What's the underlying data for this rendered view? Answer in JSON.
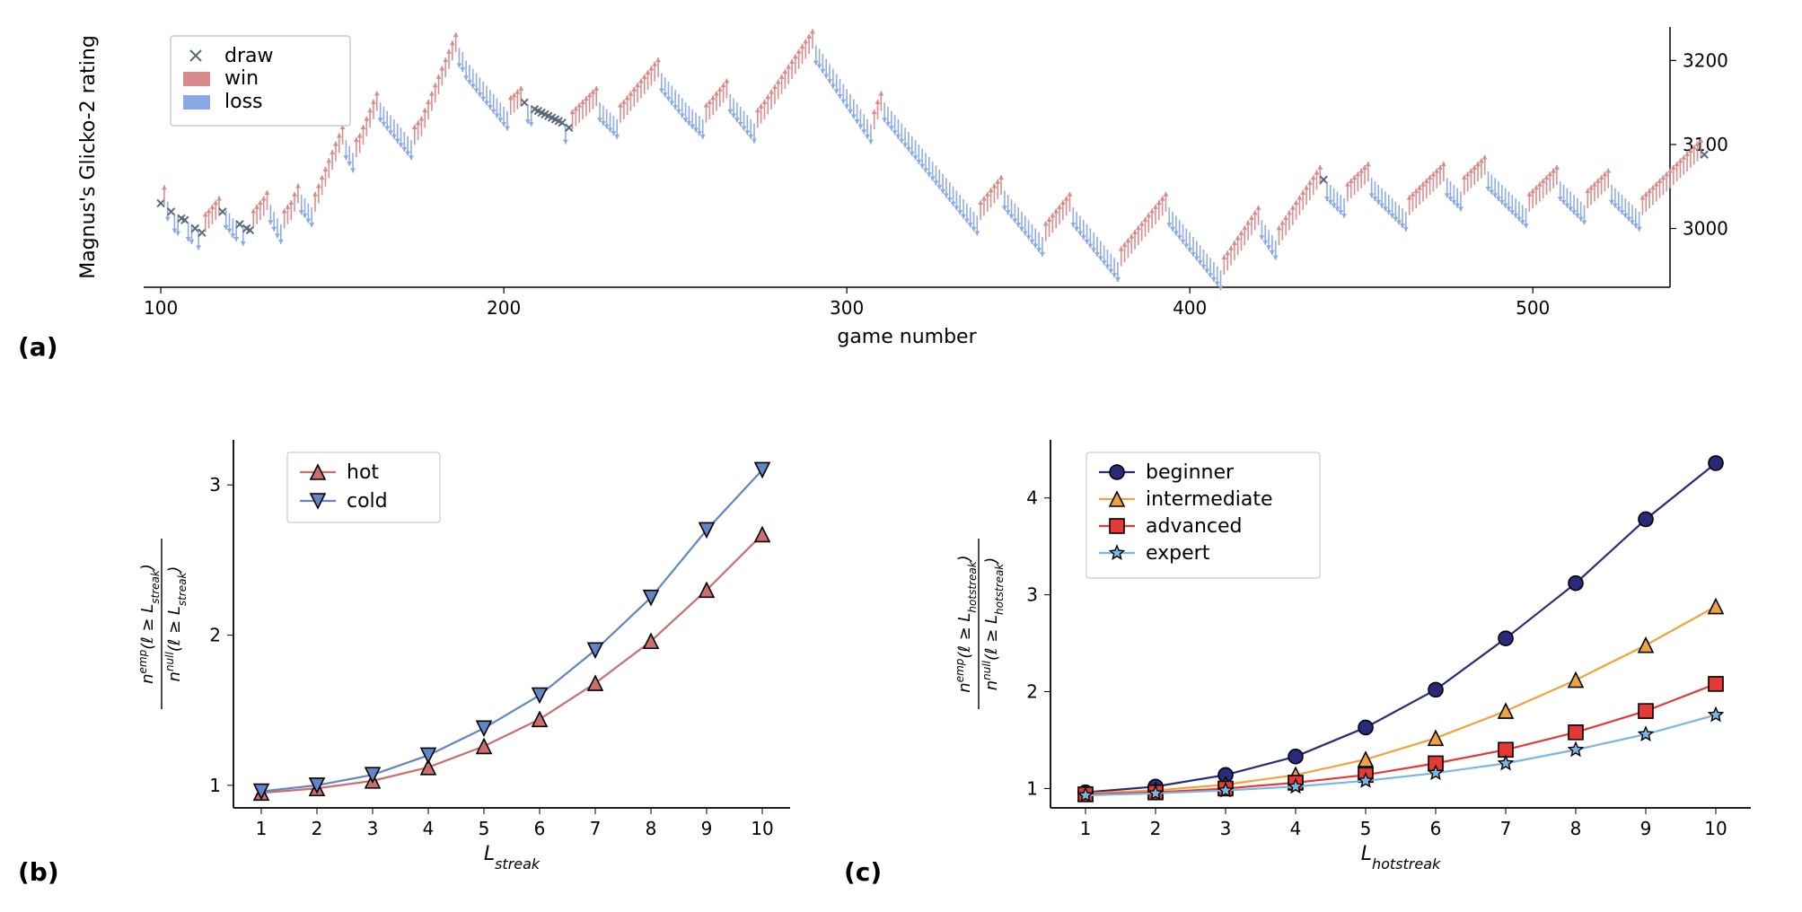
{
  "panel_labels": {
    "a": "(a)",
    "b": "(b)",
    "c": "(c)"
  },
  "colors": {
    "win": "#d88a8a",
    "loss": "#8aa8e6",
    "draw": "#5a6a78",
    "axis": "#000000",
    "grid": "#e6e6e6",
    "frame": "#c0c0c0",
    "text": "#000000",
    "hot": "#cc6e6e",
    "cold": "#6285c7",
    "beginner": "#2a2a7a",
    "intermediate": "#f0a33a",
    "advanced": "#e53935",
    "expert": "#7ab6e6",
    "bg": "#ffffff",
    "outline": "#000000"
  },
  "fonts": {
    "tick": 20,
    "label": 22,
    "legend": 22
  },
  "panel_a": {
    "xlabel": "game number",
    "ylabel": "Magnus's Glicko-2 rating",
    "xlim": [
      95,
      540
    ],
    "ylim": [
      2930,
      3240
    ],
    "xticks": [
      100,
      200,
      300,
      400,
      500
    ],
    "yticks": [
      3000,
      3100,
      3200
    ],
    "legend": {
      "draw": "draw",
      "win": "win",
      "loss": "loss"
    },
    "series": {
      "x_start": 100,
      "n": 440,
      "arrow_amp": 22,
      "ratings": [
        3030,
        3028,
        3032,
        3020,
        3018,
        3015,
        3012,
        3010,
        3008,
        3005,
        3000,
        2998,
        2995,
        2996,
        3000,
        3005,
        3010,
        3015,
        3020,
        3022,
        3018,
        3012,
        3008,
        3005,
        3003,
        3000,
        2998,
        3000,
        3005,
        3010,
        3015,
        3022,
        3028,
        3020,
        3012,
        3005,
        3000,
        3005,
        3010,
        3020,
        3030,
        3040,
        3036,
        3030,
        3025,
        3020,
        3030,
        3040,
        3050,
        3060,
        3070,
        3080,
        3090,
        3100,
        3105,
        3098,
        3090,
        3085,
        3090,
        3100,
        3110,
        3120,
        3130,
        3140,
        3150,
        3145,
        3140,
        3135,
        3130,
        3125,
        3120,
        3115,
        3110,
        3105,
        3100,
        3105,
        3110,
        3120,
        3130,
        3140,
        3150,
        3160,
        3170,
        3180,
        3190,
        3200,
        3210,
        3215,
        3210,
        3200,
        3195,
        3190,
        3185,
        3180,
        3175,
        3170,
        3165,
        3160,
        3155,
        3150,
        3145,
        3140,
        3135,
        3138,
        3142,
        3146,
        3150,
        3148,
        3145,
        3142,
        3140,
        3138,
        3136,
        3134,
        3132,
        3130,
        3128,
        3126,
        3124,
        3120,
        3118,
        3122,
        3126,
        3130,
        3134,
        3138,
        3142,
        3146,
        3150,
        3146,
        3142,
        3138,
        3134,
        3130,
        3126,
        3130,
        3135,
        3140,
        3145,
        3150,
        3155,
        3160,
        3165,
        3170,
        3175,
        3180,
        3185,
        3180,
        3175,
        3170,
        3165,
        3160,
        3155,
        3150,
        3146,
        3142,
        3138,
        3134,
        3130,
        3126,
        3130,
        3135,
        3140,
        3145,
        3150,
        3155,
        3160,
        3155,
        3150,
        3145,
        3140,
        3135,
        3130,
        3125,
        3120,
        3125,
        3130,
        3136,
        3142,
        3148,
        3154,
        3160,
        3166,
        3172,
        3178,
        3184,
        3190,
        3196,
        3202,
        3208,
        3214,
        3218,
        3214,
        3208,
        3202,
        3196,
        3190,
        3184,
        3178,
        3172,
        3166,
        3160,
        3154,
        3148,
        3142,
        3136,
        3130,
        3124,
        3118,
        3130,
        3140,
        3150,
        3145,
        3140,
        3135,
        3130,
        3125,
        3120,
        3115,
        3110,
        3105,
        3100,
        3095,
        3090,
        3085,
        3080,
        3075,
        3070,
        3065,
        3060,
        3055,
        3050,
        3045,
        3040,
        3035,
        3030,
        3025,
        3020,
        3015,
        3010,
        3015,
        3020,
        3025,
        3030,
        3035,
        3040,
        3045,
        3040,
        3035,
        3030,
        3025,
        3020,
        3015,
        3010,
        3005,
        3000,
        2995,
        2990,
        2985,
        2990,
        2995,
        3000,
        3005,
        3010,
        3015,
        3020,
        3025,
        3020,
        3015,
        3010,
        3005,
        3000,
        2995,
        2990,
        2985,
        2980,
        2975,
        2970,
        2965,
        2960,
        2955,
        2960,
        2965,
        2970,
        2975,
        2980,
        2985,
        2990,
        2995,
        3000,
        3005,
        3010,
        3015,
        3020,
        3025,
        3020,
        3015,
        3010,
        3005,
        3000,
        2995,
        2990,
        2985,
        2980,
        2975,
        2970,
        2965,
        2960,
        2955,
        2950,
        2945,
        2950,
        2956,
        2962,
        2968,
        2974,
        2980,
        2986,
        2992,
        2998,
        3004,
        3010,
        3004,
        2998,
        2992,
        2986,
        2980,
        2986,
        2992,
        2998,
        3004,
        3010,
        3016,
        3022,
        3028,
        3034,
        3040,
        3046,
        3052,
        3058,
        3056,
        3052,
        3048,
        3044,
        3040,
        3036,
        3032,
        3036,
        3040,
        3044,
        3048,
        3052,
        3056,
        3060,
        3056,
        3052,
        3048,
        3044,
        3040,
        3036,
        3032,
        3028,
        3024,
        3020,
        3016,
        3020,
        3024,
        3028,
        3032,
        3036,
        3040,
        3044,
        3048,
        3052,
        3056,
        3060,
        3056,
        3052,
        3048,
        3044,
        3040,
        3044,
        3048,
        3052,
        3056,
        3060,
        3064,
        3068,
        3064,
        3060,
        3056,
        3052,
        3048,
        3044,
        3040,
        3036,
        3032,
        3028,
        3024,
        3020,
        3024,
        3028,
        3032,
        3036,
        3040,
        3044,
        3048,
        3052,
        3056,
        3052,
        3048,
        3044,
        3040,
        3036,
        3032,
        3028,
        3024,
        3028,
        3032,
        3036,
        3040,
        3044,
        3048,
        3052,
        3048,
        3044,
        3040,
        3036,
        3032,
        3028,
        3024,
        3020,
        3016,
        3020,
        3024,
        3028,
        3032,
        3036,
        3040,
        3044,
        3048,
        3052,
        3056,
        3060,
        3064,
        3068,
        3072,
        3076,
        3080,
        3084,
        3088
      ]
    }
  },
  "panel_b": {
    "xlabel": "L_streak",
    "ylabel_top": "n^{emp}(ℓ ≥ L_{streak})",
    "ylabel_bot": "n^{null}(ℓ ≥ L_{streak})",
    "xlim": [
      0.5,
      10.5
    ],
    "ylim": [
      0.85,
      3.3
    ],
    "xticks": [
      1,
      2,
      3,
      4,
      5,
      6,
      7,
      8,
      9,
      10
    ],
    "yticks": [
      1,
      2,
      3
    ],
    "legend": {
      "hot": "hot",
      "cold": "cold"
    },
    "series": {
      "x": [
        1,
        2,
        3,
        4,
        5,
        6,
        7,
        8,
        9,
        10
      ],
      "hot": [
        0.95,
        0.98,
        1.03,
        1.12,
        1.26,
        1.44,
        1.68,
        1.96,
        2.3,
        2.67
      ],
      "cold": [
        0.96,
        1.0,
        1.07,
        1.2,
        1.38,
        1.6,
        1.9,
        2.25,
        2.7,
        3.1
      ]
    },
    "markers": {
      "hot": "triangle-up",
      "cold": "triangle-down"
    },
    "marker_size": 8,
    "line_width": 2.2
  },
  "panel_c": {
    "xlabel": "L_hotstreak",
    "ylabel_top": "n^{emp}(ℓ ≥ L_{hotstreak})",
    "ylabel_bot": "n^{null}(ℓ ≥ L_{hotstreak})",
    "xlim": [
      0.5,
      10.5
    ],
    "ylim": [
      0.8,
      4.6
    ],
    "xticks": [
      1,
      2,
      3,
      4,
      5,
      6,
      7,
      8,
      9,
      10
    ],
    "yticks": [
      1,
      2,
      3,
      4
    ],
    "legend": {
      "beginner": "beginner",
      "intermediate": "intermediate",
      "advanced": "advanced",
      "expert": "expert"
    },
    "series": {
      "x": [
        1,
        2,
        3,
        4,
        5,
        6,
        7,
        8,
        9,
        10
      ],
      "beginner": [
        0.96,
        1.02,
        1.14,
        1.33,
        1.63,
        2.02,
        2.55,
        3.12,
        3.78,
        4.36
      ],
      "intermediate": [
        0.95,
        0.98,
        1.04,
        1.14,
        1.3,
        1.52,
        1.8,
        2.12,
        2.48,
        2.88
      ],
      "advanced": [
        0.94,
        0.96,
        1.0,
        1.06,
        1.14,
        1.26,
        1.4,
        1.58,
        1.8,
        2.08
      ],
      "expert": [
        0.93,
        0.95,
        0.98,
        1.02,
        1.08,
        1.16,
        1.26,
        1.4,
        1.56,
        1.76
      ]
    },
    "markers": {
      "beginner": "circle",
      "intermediate": "triangle-up",
      "advanced": "square",
      "expert": "star"
    },
    "marker_size": 8,
    "line_width": 2.2
  }
}
